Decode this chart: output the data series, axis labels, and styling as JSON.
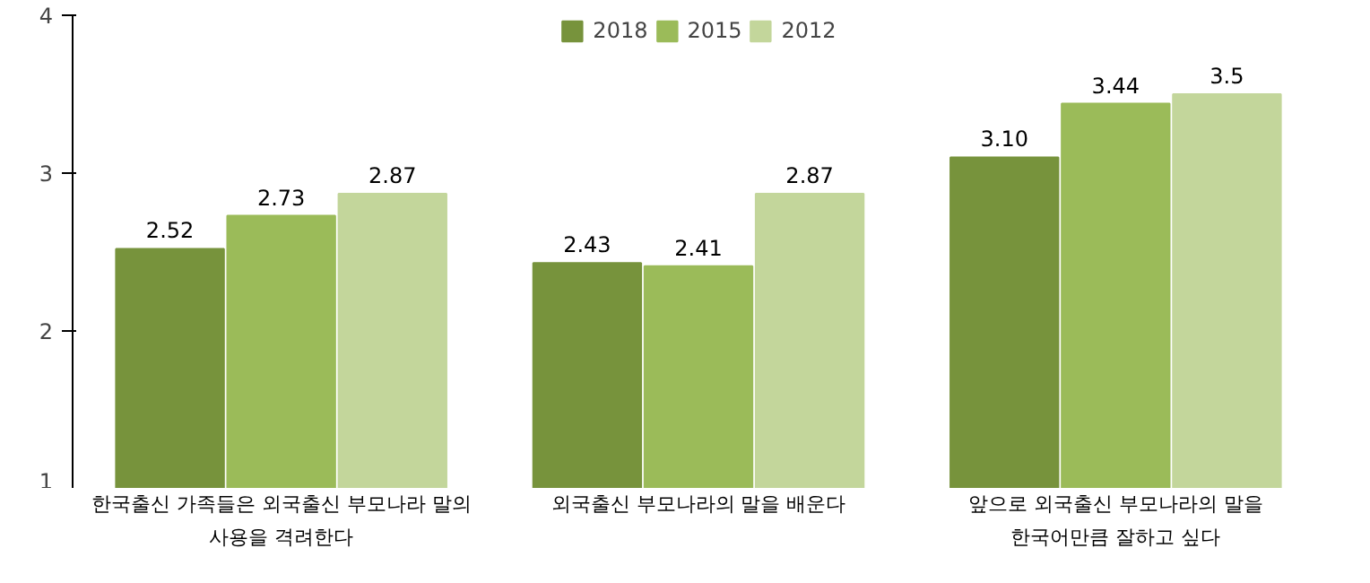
{
  "chart_data": {
    "type": "bar",
    "categories": [
      "한국출신 가족들은 외국출신 부모나라 말의\n사용을 격려한다",
      "외국출신 부모나라의 말을 배운다",
      "앞으로 외국출신 부모나라의 말을\n한국어만큼 잘하고 싶다"
    ],
    "series": [
      {
        "name": "2018",
        "color": "#77933c",
        "values": [
          2.52,
          2.43,
          3.1
        ],
        "value_labels": [
          "2.52",
          "2.43",
          "3.10"
        ]
      },
      {
        "name": "2015",
        "color": "#9bbb59",
        "values": [
          2.73,
          2.41,
          3.44
        ],
        "value_labels": [
          "2.73",
          "2.41",
          "3.44"
        ]
      },
      {
        "name": "2012",
        "color": "#c3d69b",
        "values": [
          2.87,
          2.87,
          3.5
        ],
        "value_labels": [
          "2.87",
          "2.87",
          "3.5"
        ]
      }
    ],
    "ylim": [
      1,
      4
    ],
    "yticks": [
      1,
      2,
      3,
      4
    ],
    "grid": false,
    "legend": "top"
  }
}
